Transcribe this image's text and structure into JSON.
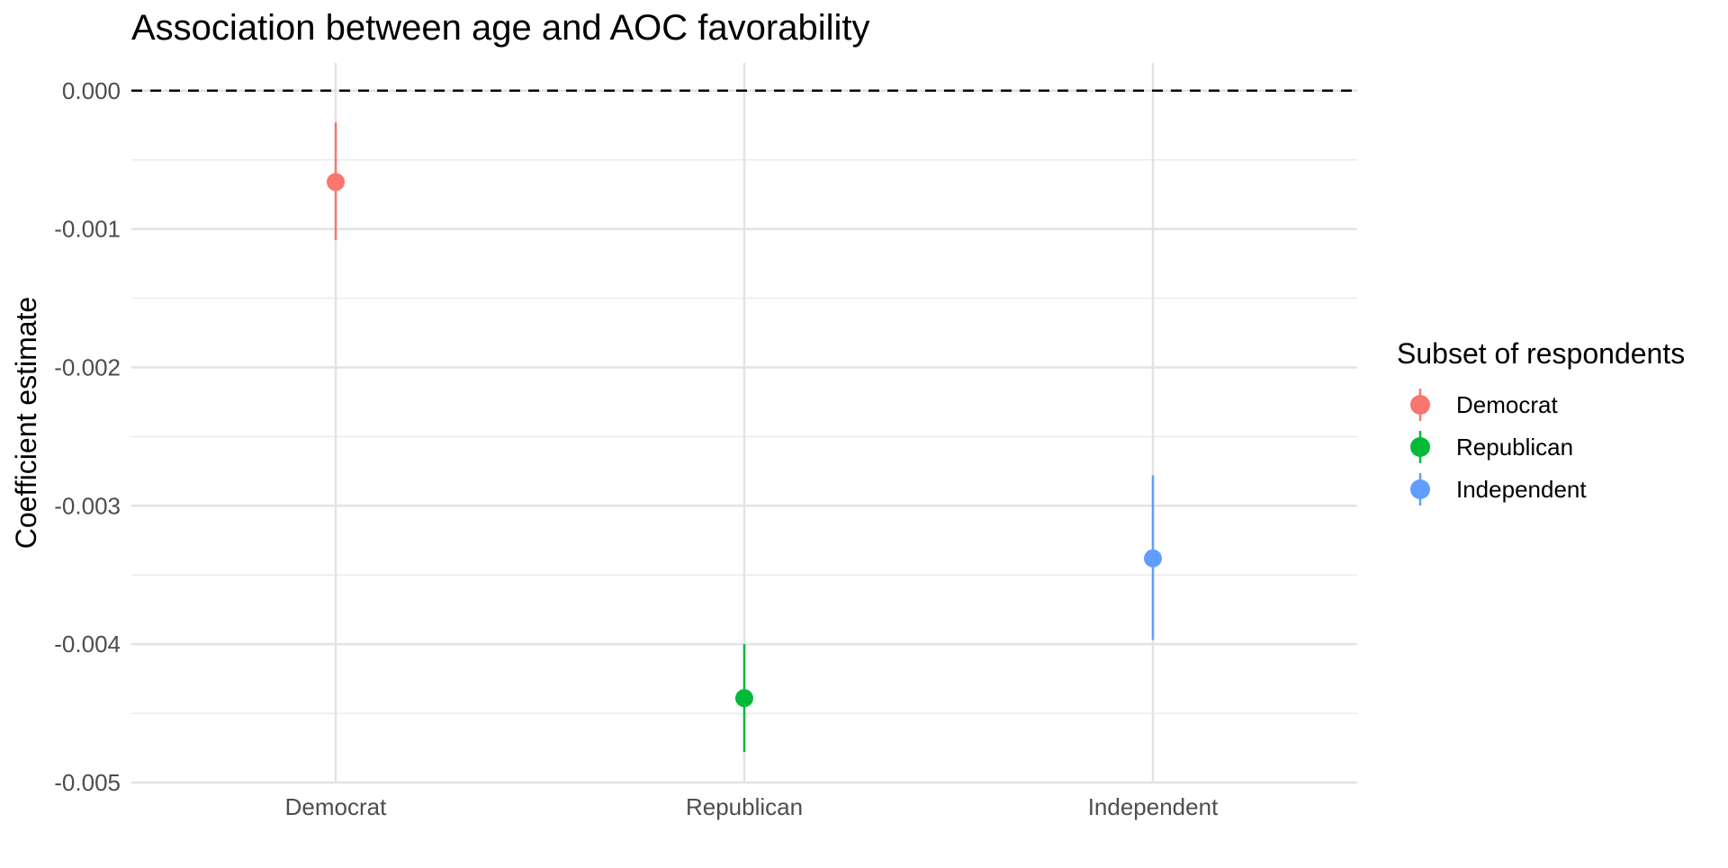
{
  "chart_data": {
    "type": "scatter",
    "title": "Association between age and AOC favorability",
    "xlabel": "",
    "ylabel": "Coefficient estimate",
    "categories": [
      "Democrat",
      "Republican",
      "Independent"
    ],
    "ylim": [
      -0.005,
      0.0002
    ],
    "yticks": [
      0.0,
      -0.001,
      -0.002,
      -0.003,
      -0.004,
      -0.005
    ],
    "ytick_labels": [
      "0.000",
      "-0.001",
      "-0.002",
      "-0.003",
      "-0.004",
      "-0.005"
    ],
    "reference_line": {
      "y": 0.0,
      "style": "dashed"
    },
    "grid": true,
    "legend": {
      "title": "Subset of respondents",
      "placement": "right"
    },
    "series": [
      {
        "name": "Democrat",
        "color": "#F8766D",
        "x": "Democrat",
        "estimate": -0.00066,
        "lower": -0.00108,
        "upper": -0.00023
      },
      {
        "name": "Republican",
        "color": "#00BA38",
        "x": "Republican",
        "estimate": -0.00439,
        "lower": -0.00478,
        "upper": -0.004
      },
      {
        "name": "Independent",
        "color": "#619CFF",
        "x": "Independent",
        "estimate": -0.00338,
        "lower": -0.00397,
        "upper": -0.00278
      }
    ]
  }
}
